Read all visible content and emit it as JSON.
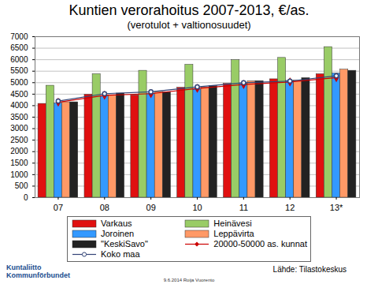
{
  "chart_data": {
    "type": "bar",
    "title": "Kuntien verorahoitus 2007-2013, €/as.",
    "subtitle": "(verotulot + valtionosuudet)",
    "categories": [
      "07",
      "08",
      "09",
      "10",
      "11",
      "12",
      "13*"
    ],
    "series": [
      {
        "name": "Varkaus",
        "type": "bar",
        "color": "#e01010",
        "values": [
          4080,
          4480,
          4450,
          4780,
          4950,
          5150,
          5370
        ]
      },
      {
        "name": "Heinävesi",
        "type": "bar",
        "color": "#99cc66",
        "values": [
          4870,
          5370,
          5520,
          5780,
          5980,
          6080,
          6550
        ]
      },
      {
        "name": "Joroinen",
        "type": "bar",
        "color": "#3399ff",
        "values": [
          4100,
          4420,
          4510,
          4700,
          4950,
          5080,
          5400
        ]
      },
      {
        "name": "Leppävirta",
        "type": "bar",
        "color": "#ff9966",
        "values": [
          4150,
          4450,
          4600,
          4800,
          5060,
          5090,
          5570
        ]
      },
      {
        "name": "\"KeskiSavo\"",
        "type": "bar",
        "color": "#222222",
        "values": [
          4150,
          4530,
          4580,
          4850,
          5070,
          5200,
          5520
        ]
      },
      {
        "name": "20000-50000 as. kunnat",
        "type": "line",
        "marker": "diamond",
        "color": "#cc0000",
        "values": [
          4150,
          4450,
          4520,
          4750,
          4920,
          5030,
          5220
        ]
      },
      {
        "name": "Koko maa",
        "type": "line",
        "marker": "circle",
        "color": "#334477",
        "values": [
          4200,
          4520,
          4600,
          4820,
          5000,
          5070,
          5300
        ]
      }
    ],
    "ylim": [
      0,
      7000
    ],
    "yticks": [
      0,
      500,
      1000,
      1500,
      2000,
      2500,
      3000,
      3500,
      4000,
      4500,
      5000,
      5500,
      6000,
      6500,
      7000
    ],
    "grid": true,
    "legend": "bottom",
    "source": "Lähde: Tilastokeskus",
    "annotations": [
      "Kuntaliitto",
      "Kommunförbundet",
      "9.6.2014 Roija Vuorento"
    ]
  }
}
